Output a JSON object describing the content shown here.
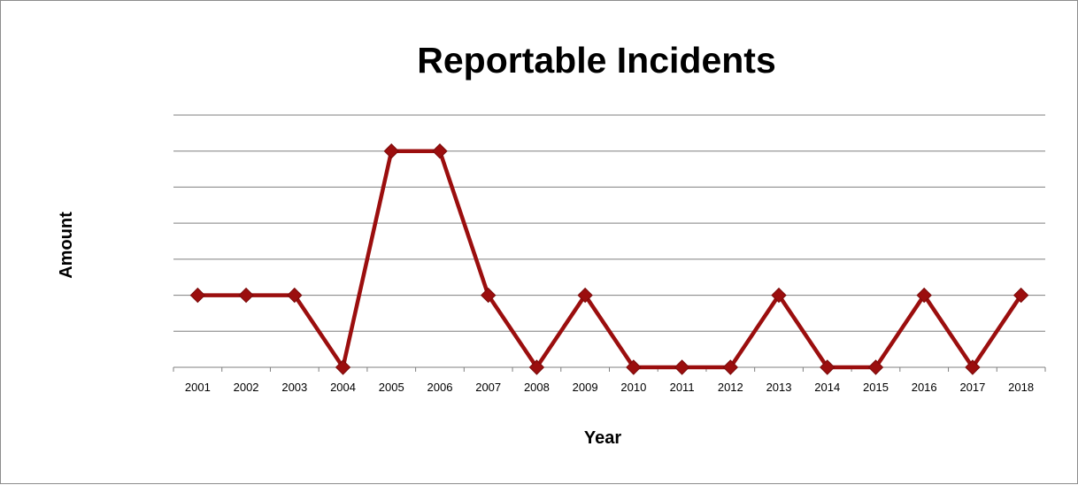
{
  "chart_data": {
    "type": "line",
    "title": "Reportable Incidents",
    "xlabel": "Year",
    "ylabel": "Amount",
    "categories": [
      "2001",
      "2002",
      "2003",
      "2004",
      "2005",
      "2006",
      "2007",
      "2008",
      "2009",
      "2010",
      "2011",
      "2012",
      "2013",
      "2014",
      "2015",
      "2016",
      "2017",
      "2018"
    ],
    "series": [
      {
        "values": [
          2,
          2,
          2,
          0,
          6,
          6,
          2,
          0,
          2,
          0,
          0,
          0,
          2,
          0,
          0,
          2,
          0,
          2
        ],
        "color": "#9b0e0e",
        "marker": "diamond"
      }
    ],
    "ylim": [
      0,
      7
    ],
    "y_tick_labels_shown": false,
    "grid": true,
    "legend": "none",
    "colors": {
      "gridline": "#7f7f7f",
      "frame_border": "#8c8c8c",
      "series_line": "#9b0e0e"
    }
  }
}
